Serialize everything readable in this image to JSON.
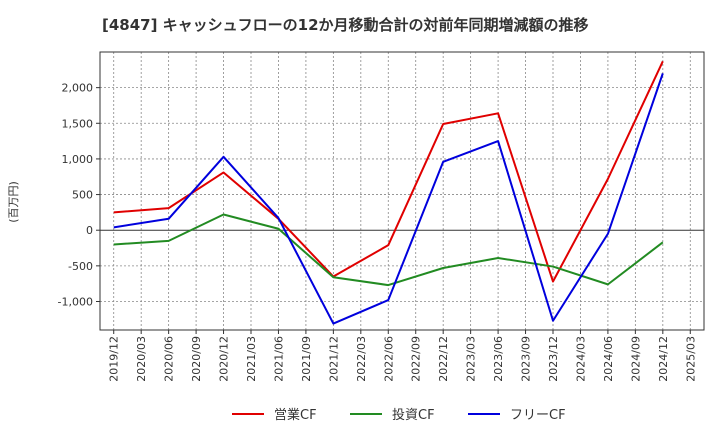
{
  "chart_data": {
    "type": "line",
    "title": "[4847]  キャッシュフローの12か月移動合計の対前年同期増減額の推移",
    "ylabel": "(百万円)",
    "xlabel": "",
    "x_ticks": [
      "2019/12",
      "2020/03",
      "2020/06",
      "2020/09",
      "2020/12",
      "2021/03",
      "2021/06",
      "2021/09",
      "2021/12",
      "2022/03",
      "2022/06",
      "2022/09",
      "2022/12",
      "2023/03",
      "2023/06",
      "2023/09",
      "2023/12",
      "2024/03",
      "2024/06",
      "2024/09",
      "2024/12",
      "2025/03"
    ],
    "ylim": [
      -1400,
      2500
    ],
    "y_ticks": [
      -1000,
      -500,
      0,
      500,
      1000,
      1500,
      2000
    ],
    "y_tick_labels": [
      "-1,000",
      "-500",
      "0",
      "500",
      "1,000",
      "1,500",
      "2,000"
    ],
    "grid": true,
    "legend_position": "bottom",
    "series": [
      {
        "name": "営業CF",
        "color": "#e00000",
        "x": [
          "2019/12",
          "2020/06",
          "2020/12",
          "2021/06",
          "2021/12",
          "2022/06",
          "2022/12",
          "2023/06",
          "2023/12",
          "2024/06",
          "2024/12"
        ],
        "values": [
          250,
          310,
          810,
          160,
          -650,
          -210,
          1490,
          1640,
          -720,
          720,
          2370
        ]
      },
      {
        "name": "投資CF",
        "color": "#228b22",
        "x": [
          "2019/12",
          "2020/06",
          "2020/12",
          "2021/06",
          "2021/12",
          "2022/06",
          "2022/12",
          "2023/06",
          "2023/12",
          "2024/06",
          "2024/12"
        ],
        "values": [
          -200,
          -150,
          220,
          20,
          -660,
          -770,
          -530,
          -390,
          -510,
          -760,
          -170
        ]
      },
      {
        "name": "フリーCF",
        "color": "#0000dd",
        "x": [
          "2019/12",
          "2020/06",
          "2020/12",
          "2021/06",
          "2021/12",
          "2022/06",
          "2022/12",
          "2023/06",
          "2023/12",
          "2024/06",
          "2024/12"
        ],
        "values": [
          40,
          160,
          1030,
          170,
          -1310,
          -980,
          960,
          1250,
          -1270,
          -50,
          2200
        ]
      }
    ]
  }
}
